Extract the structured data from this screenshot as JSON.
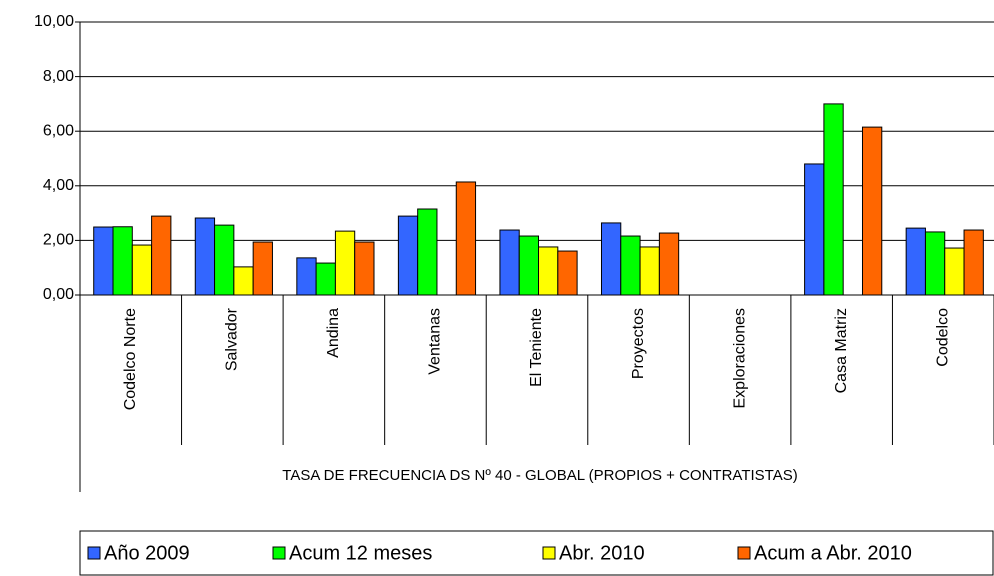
{
  "chart_data": {
    "type": "bar",
    "x_label": "TASA DE FRECUENCIA DS Nº 40 - GLOBAL (PROPIOS + CONTRATISTAS)",
    "categories": [
      "Codelco Norte",
      "Salvador",
      "Andina",
      "Ventanas",
      "El Teniente",
      "Proyectos",
      "Exploraciones",
      "Casa Matriz",
      "Codelco"
    ],
    "series": [
      {
        "name": "Año 2009",
        "color": "#3366ff",
        "values": [
          2.49,
          2.82,
          1.36,
          2.89,
          2.38,
          2.64,
          0,
          4.8,
          2.45
        ]
      },
      {
        "name": "Acum 12 meses",
        "color": "#00ff00",
        "values": [
          2.5,
          2.56,
          1.17,
          3.15,
          2.16,
          2.16,
          0,
          7.0,
          2.31
        ]
      },
      {
        "name": "Abr. 2010",
        "color": "#ffff00",
        "values": [
          1.83,
          1.03,
          2.34,
          0,
          1.76,
          1.76,
          0,
          0,
          1.72
        ]
      },
      {
        "name": "Acum a Abr. 2010",
        "color": "#ff6600",
        "values": [
          2.89,
          1.94,
          1.94,
          4.14,
          1.61,
          2.27,
          0,
          6.15,
          2.38
        ]
      }
    ],
    "ylim": [
      0,
      10
    ],
    "yticks": [
      {
        "value": 0,
        "label": "0,00"
      },
      {
        "value": 2,
        "label": "2,00"
      },
      {
        "value": 4,
        "label": "4,00"
      },
      {
        "value": 6,
        "label": "6,00"
      },
      {
        "value": 8,
        "label": "8,00"
      },
      {
        "value": 10,
        "label": "10,00"
      }
    ],
    "grid": true,
    "legend": "bottom"
  }
}
